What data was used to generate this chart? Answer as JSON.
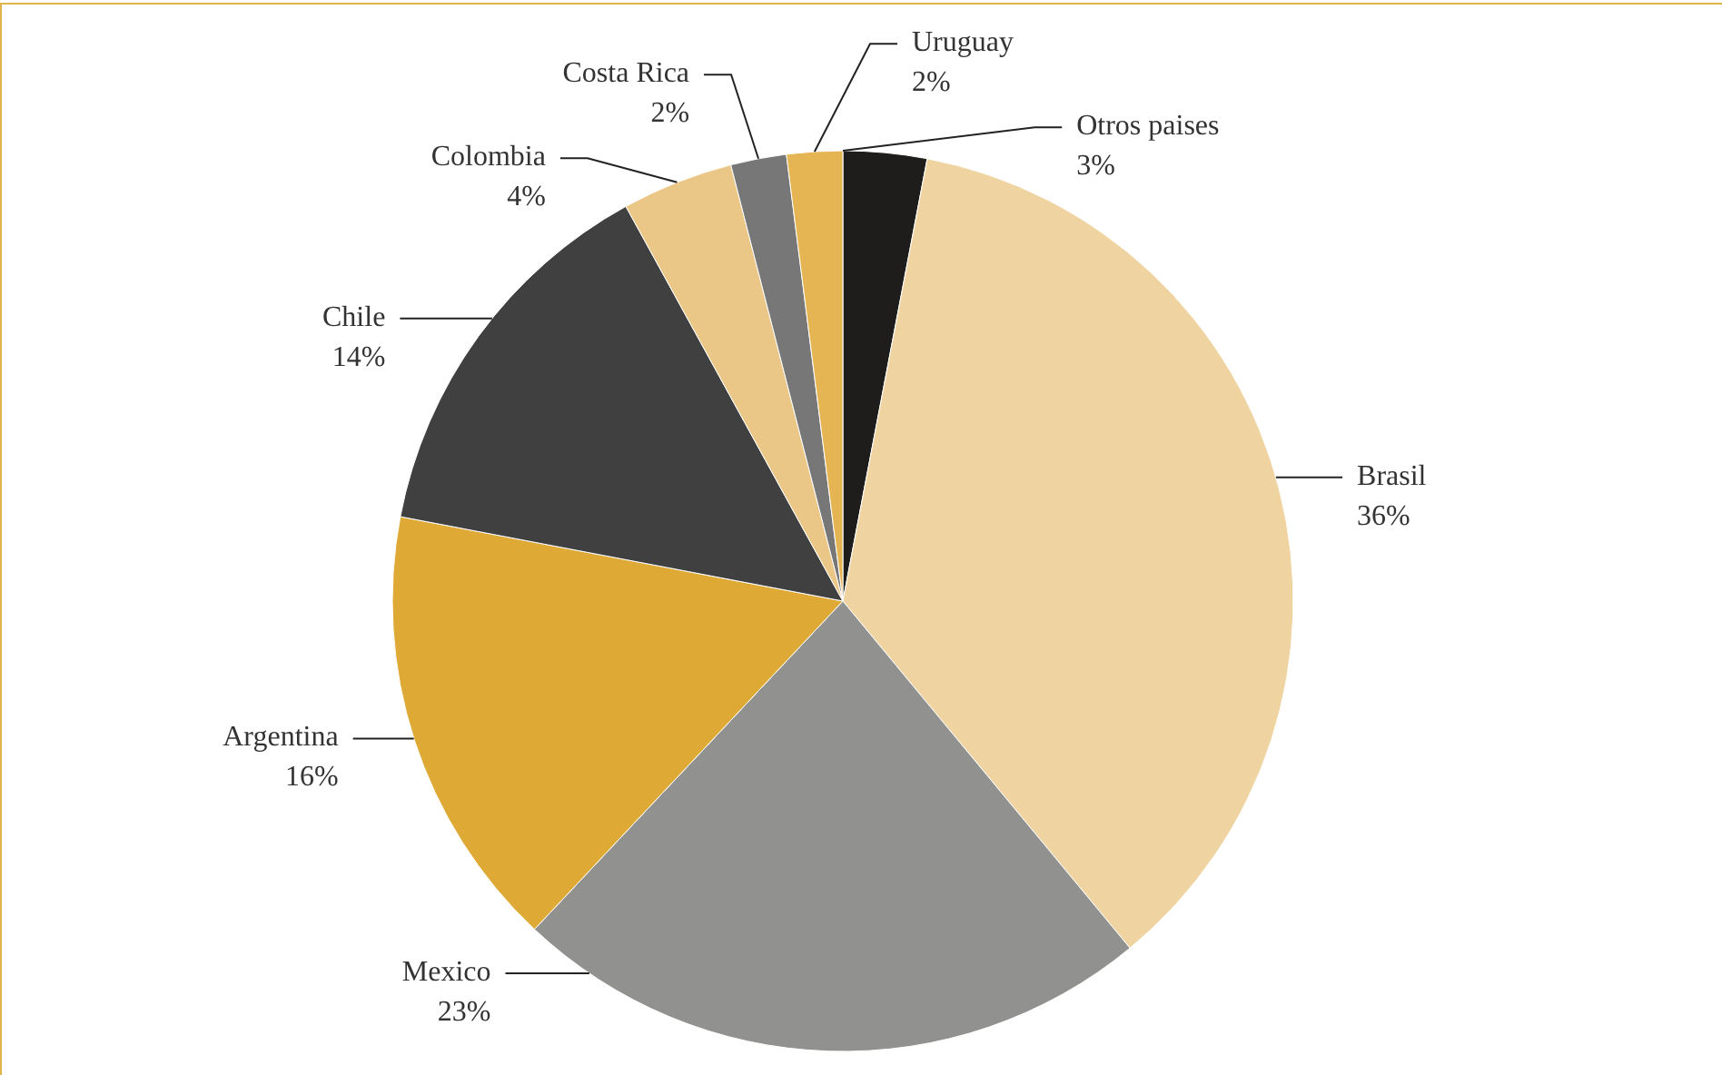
{
  "chart_data": {
    "type": "pie",
    "categories": [
      "Otros paises",
      "Brasil",
      "Mexico",
      "Argentina",
      "Chile",
      "Colombia",
      "Costa Rica",
      "Uruguay"
    ],
    "values": [
      3,
      36,
      23,
      16,
      14,
      4,
      2,
      2
    ],
    "value_labels": [
      "3%",
      "36%",
      "23%",
      "16%",
      "14%",
      "4%",
      "2%",
      "2%"
    ],
    "colors": [
      "#1e1d1b",
      "#efd3a0",
      "#919290",
      "#dea935",
      "#404040",
      "#ebc787",
      "#777777",
      "#e5b554"
    ]
  }
}
